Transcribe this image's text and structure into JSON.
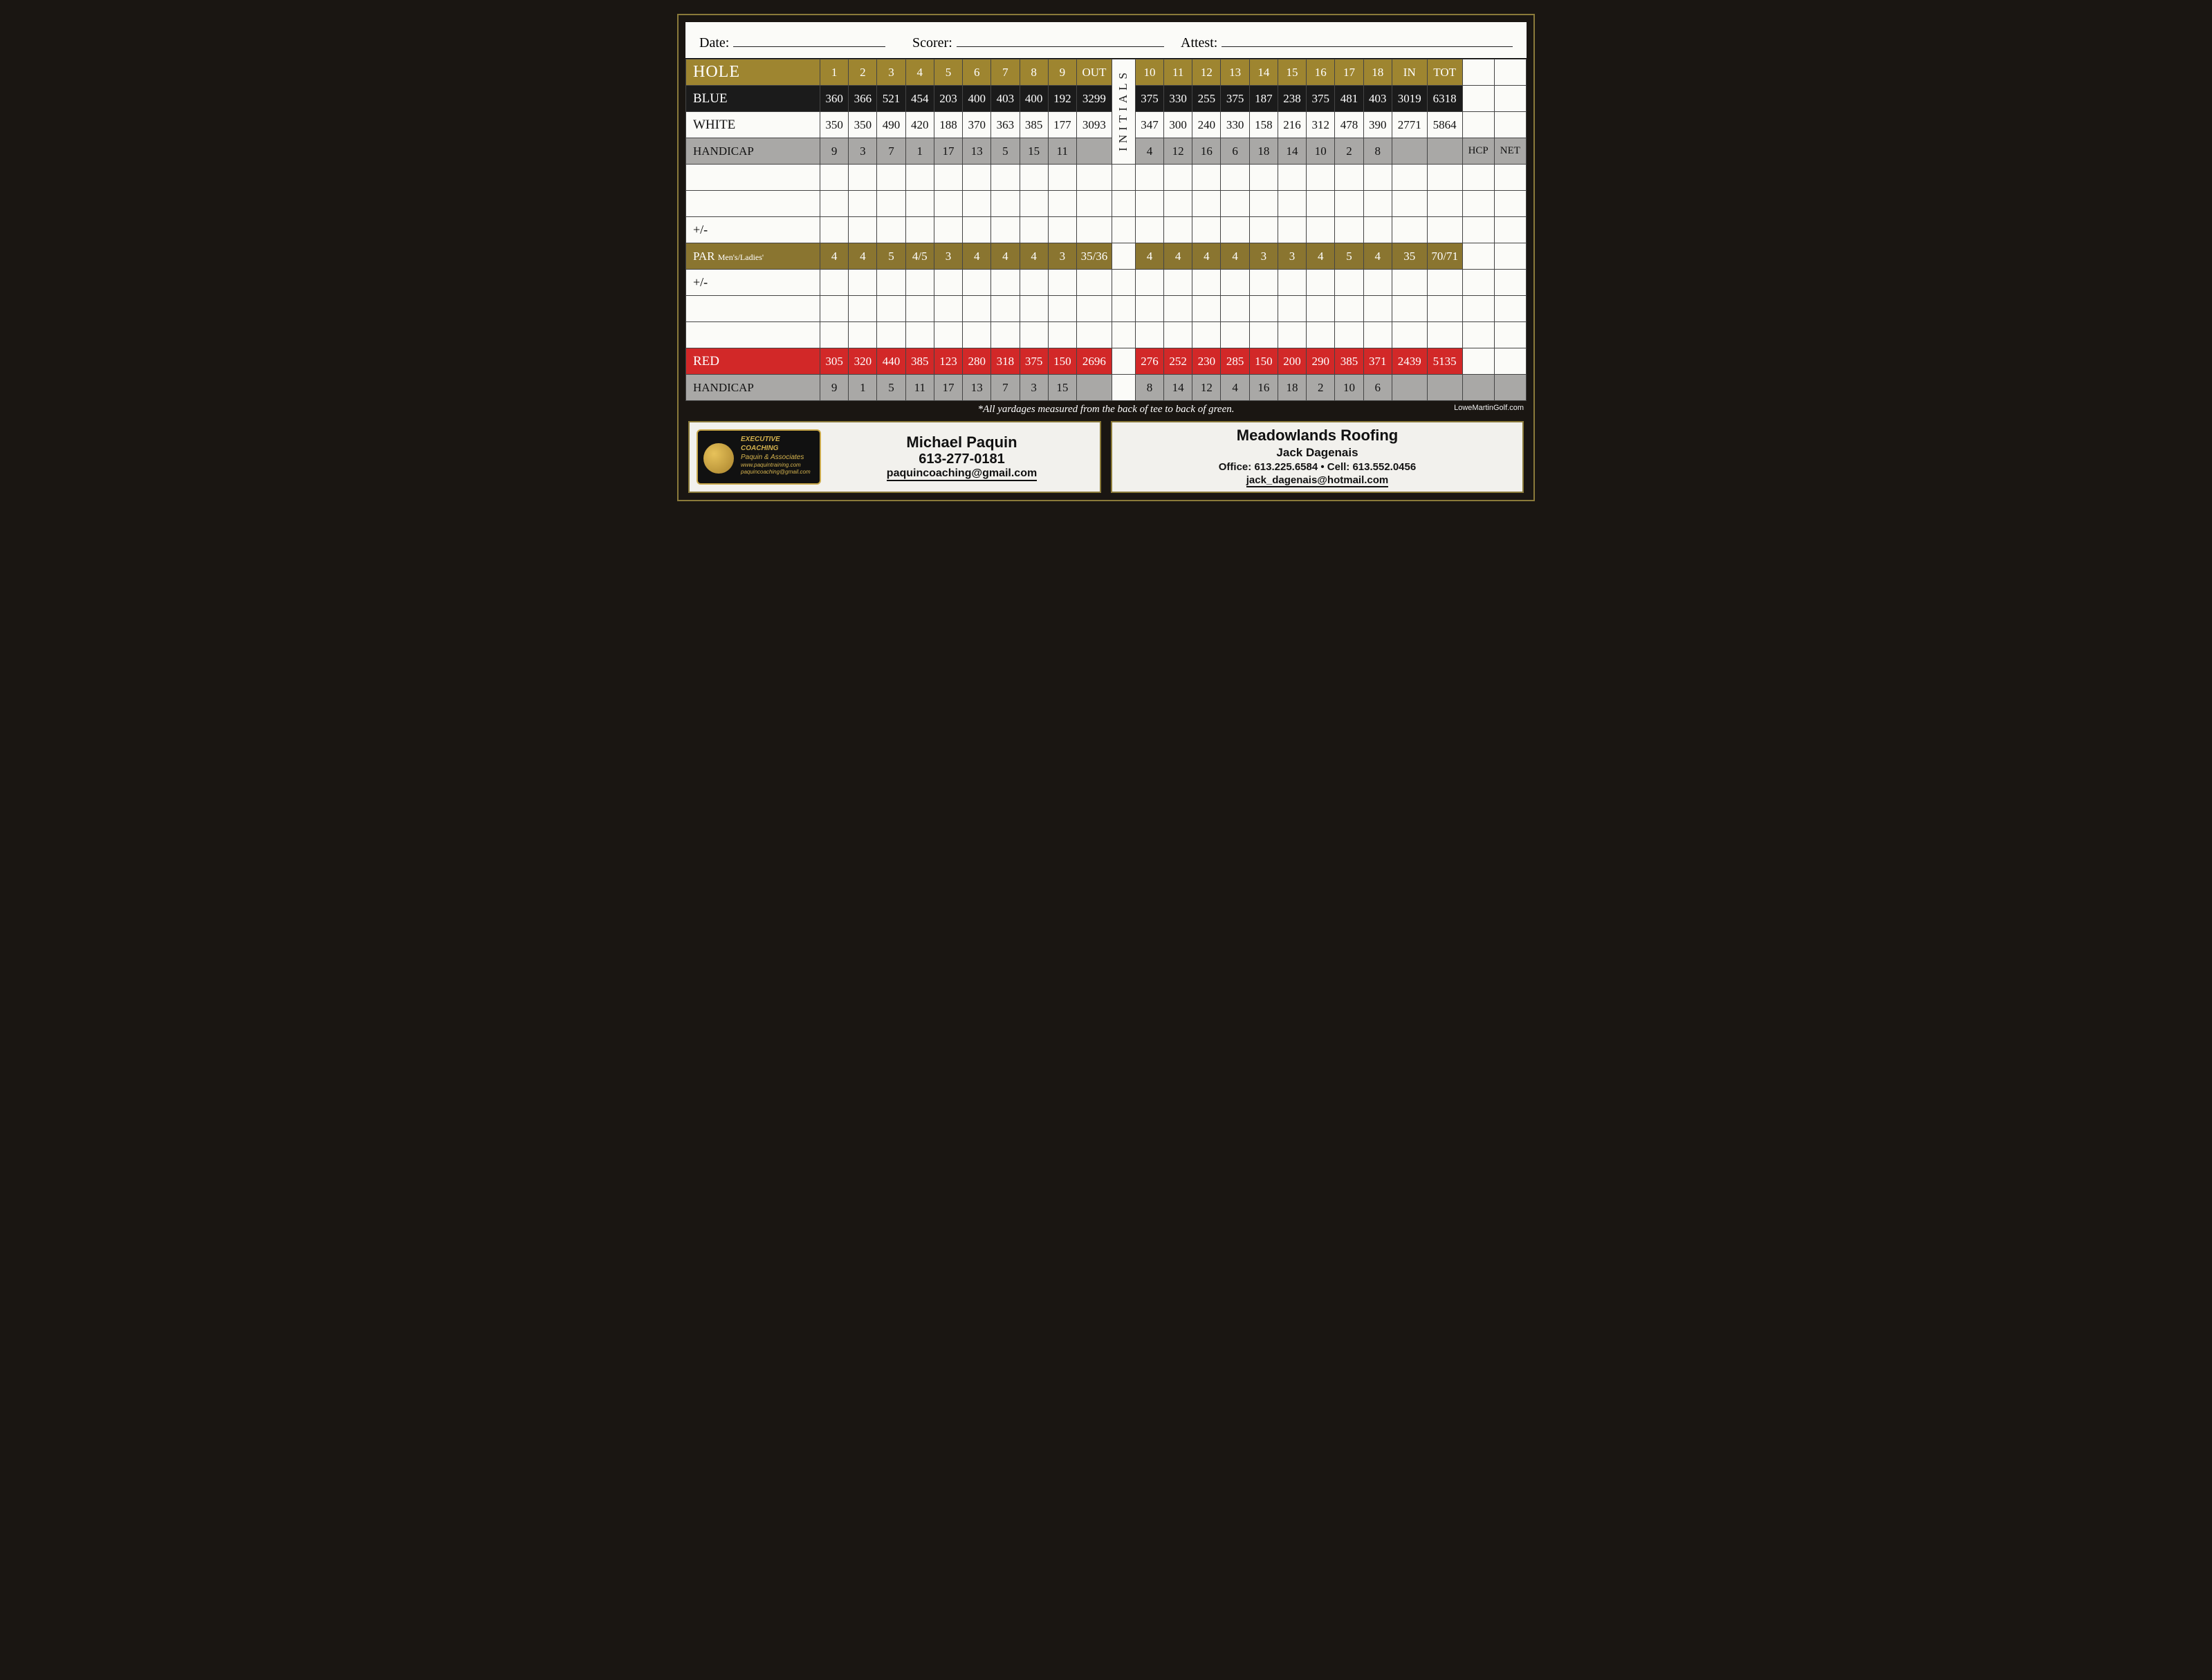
{
  "header": {
    "date": "Date:",
    "scorer": "Scorer:",
    "attest": "Attest:"
  },
  "labels": {
    "hole": "HOLE",
    "blue": "BLUE",
    "white": "WHITE",
    "handicap": "HANDICAP",
    "plusminus": "+/-",
    "par": "PAR",
    "par_sub": "Men's/Ladies'",
    "red": "RED",
    "initials": "INITIALS",
    "out": "OUT",
    "in": "IN",
    "tot": "TOT",
    "hcp": "HCP",
    "net": "NET"
  },
  "holes_front": [
    "1",
    "2",
    "3",
    "4",
    "5",
    "6",
    "7",
    "8",
    "9"
  ],
  "holes_back": [
    "10",
    "11",
    "12",
    "13",
    "14",
    "15",
    "16",
    "17",
    "18"
  ],
  "blue": {
    "front": [
      "360",
      "366",
      "521",
      "454",
      "203",
      "400",
      "403",
      "400",
      "192"
    ],
    "out": "3299",
    "back": [
      "375",
      "330",
      "255",
      "375",
      "187",
      "238",
      "375",
      "481",
      "403"
    ],
    "in": "3019",
    "tot": "6318"
  },
  "white": {
    "front": [
      "350",
      "350",
      "490",
      "420",
      "188",
      "370",
      "363",
      "385",
      "177"
    ],
    "out": "3093",
    "back": [
      "347",
      "300",
      "240",
      "330",
      "158",
      "216",
      "312",
      "478",
      "390"
    ],
    "in": "2771",
    "tot": "5864"
  },
  "hcp1": {
    "front": [
      "9",
      "3",
      "7",
      "1",
      "17",
      "13",
      "5",
      "15",
      "11"
    ],
    "back": [
      "4",
      "12",
      "16",
      "6",
      "18",
      "14",
      "10",
      "2",
      "8"
    ]
  },
  "par": {
    "front": [
      "4",
      "4",
      "5",
      "4/5",
      "3",
      "4",
      "4",
      "4",
      "3"
    ],
    "out": "35/36",
    "back": [
      "4",
      "4",
      "4",
      "4",
      "3",
      "3",
      "4",
      "5",
      "4"
    ],
    "in": "35",
    "tot": "70/71"
  },
  "red": {
    "front": [
      "305",
      "320",
      "440",
      "385",
      "123",
      "280",
      "318",
      "375",
      "150"
    ],
    "out": "2696",
    "back": [
      "276",
      "252",
      "230",
      "285",
      "150",
      "200",
      "290",
      "385",
      "371"
    ],
    "in": "2439",
    "tot": "5135"
  },
  "hcp2": {
    "front": [
      "9",
      "1",
      "5",
      "11",
      "17",
      "13",
      "7",
      "3",
      "15"
    ],
    "back": [
      "8",
      "14",
      "12",
      "4",
      "16",
      "18",
      "2",
      "10",
      "6"
    ]
  },
  "footnote": "*All yardages measured from the back of tee to back of green.",
  "credit": "LoweMartinGolf.com",
  "ad1": {
    "logo_l1": "EXECUTIVE COACHING",
    "logo_l2": "Paquin & Associates",
    "logo_l3": "www.paquintraining.com",
    "logo_l4": "paquincoaching@gmail.com",
    "name": "Michael Paquin",
    "phone": "613-277-0181",
    "email": "paquincoaching@gmail.com"
  },
  "ad2": {
    "biz": "Meadowlands Roofing",
    "person": "Jack Dagenais",
    "phones": "Office: 613.225.6584   •   Cell: 613.552.0456",
    "email": "jack_dagenais@hotmail.com"
  },
  "colors": {
    "gold": "#9e8530",
    "par_gold": "#8a7530",
    "black": "#1b1b1b",
    "grey": "#a9a8a6",
    "red": "#d22828",
    "paper": "#fbfbf8",
    "frame": "#8a7a3a",
    "page_bg": "#1a1612"
  }
}
